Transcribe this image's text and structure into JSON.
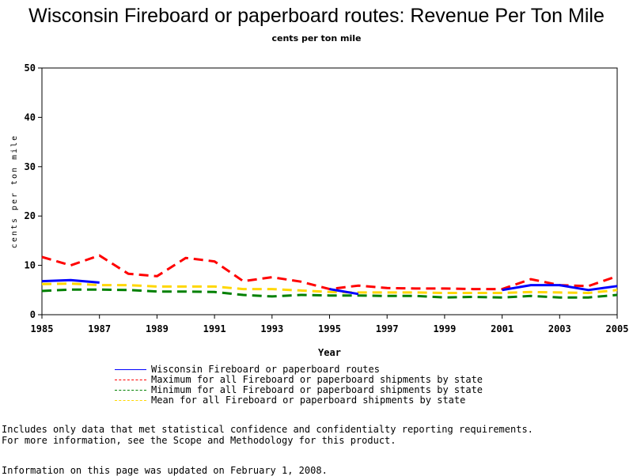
{
  "chart_data": {
    "type": "line",
    "title": "Wisconsin Fireboard or paperboard routes: Revenue Per Ton Mile",
    "subtitle": "cents per ton mile",
    "xlabel": "Year",
    "ylabel": "cents per ton mile",
    "xlim": [
      1985,
      2005
    ],
    "ylim": [
      0,
      50
    ],
    "x_ticks": [
      1985,
      1987,
      1989,
      1991,
      1993,
      1995,
      1997,
      1999,
      2001,
      2003,
      2005
    ],
    "y_ticks": [
      0,
      10,
      20,
      30,
      40,
      50
    ],
    "grid": false,
    "legend_position": "bottom",
    "series": [
      {
        "name": "Wisconsin Fireboard or paperboard routes",
        "color": "#0000ff",
        "style": "solid",
        "points": [
          [
            1985,
            6.8
          ],
          [
            1986,
            7.0
          ],
          [
            1987,
            6.5
          ],
          [
            null,
            null
          ],
          [
            1995,
            5.2
          ],
          [
            1996,
            4.2
          ],
          [
            null,
            null
          ],
          [
            2001,
            5.0
          ],
          [
            2002,
            6.0
          ],
          [
            2003,
            6.0
          ],
          [
            2004,
            5.0
          ],
          [
            2005,
            5.8
          ]
        ]
      },
      {
        "name": "Maximum for all Fireboard or paperboard shipments by state",
        "color": "#ff0000",
        "style": "dashed",
        "points": [
          [
            1985,
            11.7
          ],
          [
            1986,
            10.0
          ],
          [
            1987,
            12.0
          ],
          [
            1988,
            8.3
          ],
          [
            1989,
            7.8
          ],
          [
            1990,
            11.5
          ],
          [
            1991,
            10.8
          ],
          [
            1992,
            6.8
          ],
          [
            1993,
            7.6
          ],
          [
            1994,
            6.7
          ],
          [
            1995,
            5.2
          ],
          [
            1996,
            5.9
          ],
          [
            1997,
            5.4
          ],
          [
            1998,
            5.3
          ],
          [
            1999,
            5.3
          ],
          [
            2000,
            5.2
          ],
          [
            2001,
            5.2
          ],
          [
            2002,
            7.2
          ],
          [
            2003,
            6.0
          ],
          [
            2004,
            5.8
          ],
          [
            2005,
            7.8
          ]
        ]
      },
      {
        "name": "Minimum for all Fireboard or paperboard shipments by state",
        "color": "#008000",
        "style": "dashed",
        "points": [
          [
            1985,
            4.8
          ],
          [
            1986,
            5.1
          ],
          [
            1987,
            5.1
          ],
          [
            1988,
            5.0
          ],
          [
            1989,
            4.7
          ],
          [
            1990,
            4.7
          ],
          [
            1991,
            4.6
          ],
          [
            1992,
            4.0
          ],
          [
            1993,
            3.7
          ],
          [
            1994,
            4.0
          ],
          [
            1995,
            3.9
          ],
          [
            1996,
            3.9
          ],
          [
            1997,
            3.8
          ],
          [
            1998,
            3.8
          ],
          [
            1999,
            3.5
          ],
          [
            2000,
            3.6
          ],
          [
            2001,
            3.5
          ],
          [
            2002,
            3.8
          ],
          [
            2003,
            3.5
          ],
          [
            2004,
            3.5
          ],
          [
            2005,
            4.0
          ]
        ]
      },
      {
        "name": "Mean for all Fireboard or paperboard shipments by state",
        "color": "#ffd700",
        "style": "dashed",
        "points": [
          [
            1985,
            6.2
          ],
          [
            1986,
            6.3
          ],
          [
            1987,
            6.0
          ],
          [
            1988,
            6.0
          ],
          [
            1989,
            5.7
          ],
          [
            1990,
            5.7
          ],
          [
            1991,
            5.7
          ],
          [
            1992,
            5.2
          ],
          [
            1993,
            5.2
          ],
          [
            1994,
            4.9
          ],
          [
            1995,
            4.6
          ],
          [
            1996,
            4.5
          ],
          [
            1997,
            4.5
          ],
          [
            1998,
            4.5
          ],
          [
            1999,
            4.4
          ],
          [
            2000,
            4.4
          ],
          [
            2001,
            4.4
          ],
          [
            2002,
            4.6
          ],
          [
            2003,
            4.5
          ],
          [
            2004,
            4.4
          ],
          [
            2005,
            5.0
          ]
        ]
      }
    ]
  },
  "notes": {
    "line1": "Includes only data that met statistical confidence and confidentialty reporting requirements.",
    "line2": "For more information, see the Scope and Methodology for this product.",
    "updated": "Information on this page was updated on February 1, 2008."
  }
}
